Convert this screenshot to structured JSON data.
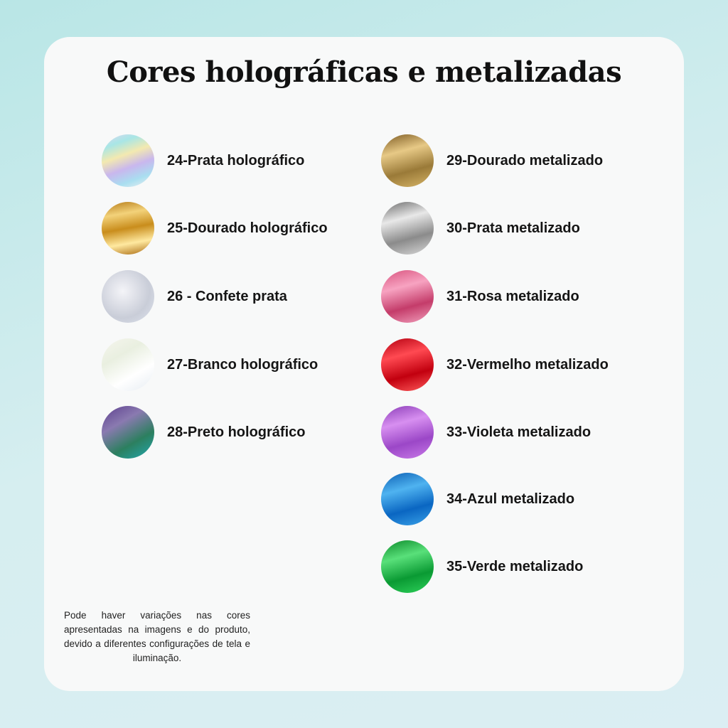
{
  "header": {
    "title": "Cores holográficas e metalizadas"
  },
  "left_items": [
    {
      "label": "24-Prata holográfico"
    },
    {
      "label": "25-Dourado holográfico"
    },
    {
      "label": "26 - Confete prata"
    },
    {
      "label": "27-Branco holográfico"
    },
    {
      "label": "28-Preto holográfico"
    }
  ],
  "right_items": [
    {
      "label": "29-Dourado metalizado"
    },
    {
      "label": "30-Prata metalizado"
    },
    {
      "label": "31-Rosa metalizado"
    },
    {
      "label": "32-Vermelho metalizado"
    },
    {
      "label": "33-Violeta metalizado"
    },
    {
      "label": "34-Azul metalizado"
    },
    {
      "label": "35-Verde metalizado"
    }
  ],
  "note": "Pode haver variações nas cores apresentadas na imagens e do produto, devido a diferentes configurações de tela e iluminação."
}
